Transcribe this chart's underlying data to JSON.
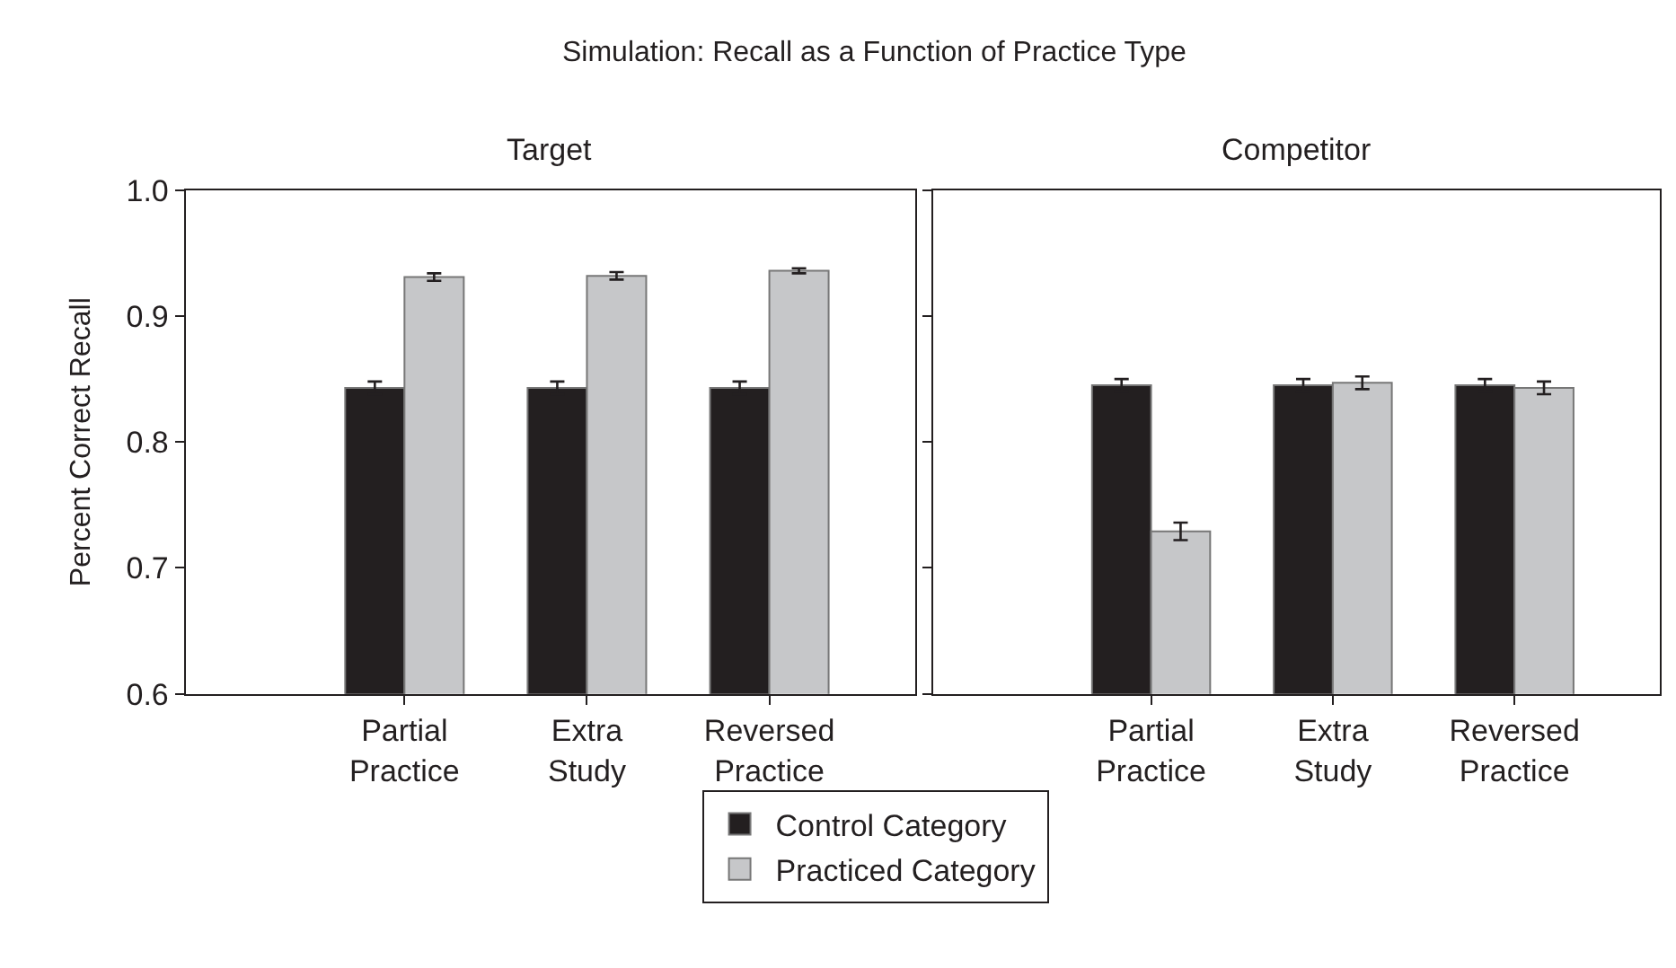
{
  "chart_data": [
    {
      "type": "bar",
      "title": "Simulation: Recall as a Function of Practice Type",
      "subtitle": "Target",
      "ylabel": "Percent Correct Recall",
      "categories": [
        "Partial Practice",
        "Extra Study",
        "Reversed Practice"
      ],
      "ylim": [
        0.6,
        1.0
      ],
      "yticks": [
        0.6,
        0.7,
        0.8,
        0.9,
        {
          "value": 1.0,
          "label": "1.0"
        }
      ],
      "legend": "bottom",
      "series": [
        {
          "name": "Control Category",
          "color": "#231f20",
          "values": [
            0.843,
            0.843,
            0.843
          ],
          "errors": [
            0.005,
            0.005,
            0.005
          ]
        },
        {
          "name": "Practiced Category",
          "color": "#c6c7c9",
          "values": [
            0.931,
            0.932,
            0.936
          ],
          "errors": [
            0.003,
            0.003,
            0.002
          ]
        }
      ]
    },
    {
      "type": "bar",
      "subtitle": "Competitor",
      "categories": [
        "Partial Practice",
        "Extra Study",
        "Reversed Practice"
      ],
      "ylim": [
        0.6,
        1.0
      ],
      "yticks": [
        {
          "value": 0.6,
          "label": null
        },
        {
          "value": 0.7,
          "label": null
        },
        {
          "value": 0.8,
          "label": null
        },
        {
          "value": 0.9,
          "label": null
        },
        {
          "value": 1.0,
          "label": null
        }
      ],
      "tick_labels": "x",
      "series": [
        {
          "color": "#231f20",
          "values": [
            0.845,
            0.845,
            0.845
          ],
          "errors": [
            0.005,
            0.005,
            0.005
          ]
        },
        {
          "color": "#c6c7c9",
          "values": [
            0.729,
            0.847,
            0.843
          ],
          "errors": [
            0.007,
            0.005,
            0.005
          ]
        }
      ]
    }
  ]
}
